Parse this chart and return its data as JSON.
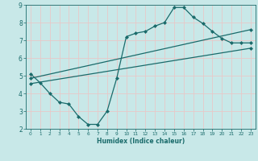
{
  "title": "",
  "xlabel": "Humidex (Indice chaleur)",
  "ylabel": "",
  "xlim": [
    -0.5,
    23.5
  ],
  "ylim": [
    2,
    9
  ],
  "xticks": [
    0,
    1,
    2,
    3,
    4,
    5,
    6,
    7,
    8,
    9,
    10,
    11,
    12,
    13,
    14,
    15,
    16,
    17,
    18,
    19,
    20,
    21,
    22,
    23
  ],
  "yticks": [
    2,
    3,
    4,
    5,
    6,
    7,
    8,
    9
  ],
  "bg_color": "#c8e8e8",
  "line_color": "#1a6b6b",
  "grid_color": "#f0f0f0",
  "line1_x": [
    0,
    1,
    2,
    3,
    4,
    5,
    6,
    7,
    8,
    9,
    10,
    11,
    12,
    13,
    14,
    15,
    16,
    17,
    18,
    19,
    20,
    21,
    22,
    23
  ],
  "line1_y": [
    5.1,
    4.6,
    4.0,
    3.5,
    3.4,
    2.7,
    2.25,
    2.25,
    3.0,
    4.85,
    7.2,
    7.4,
    7.5,
    7.8,
    8.0,
    8.85,
    8.85,
    8.3,
    7.95,
    7.5,
    7.1,
    6.85,
    6.85,
    6.85
  ],
  "line2_x": [
    0,
    23
  ],
  "line2_y": [
    4.85,
    7.6
  ],
  "line3_x": [
    0,
    23
  ],
  "line3_y": [
    4.55,
    6.55
  ]
}
